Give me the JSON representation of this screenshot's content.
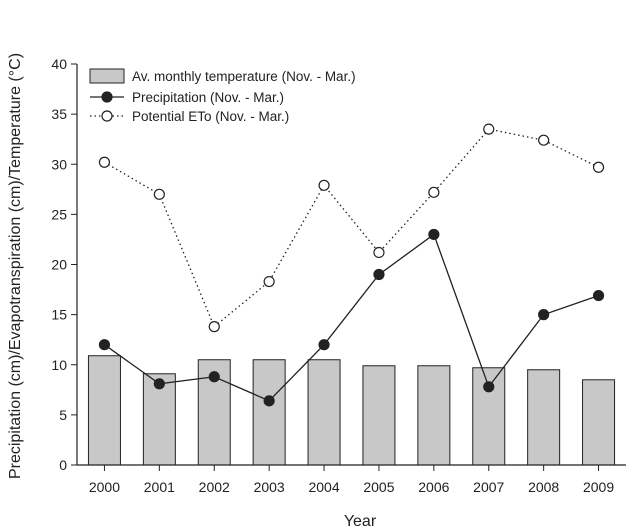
{
  "chart_data": {
    "type": "bar",
    "xlabel": "Year",
    "ylabel": "Precipitation (cm)/Evapotranspiration (cm)/Temperature (°C)",
    "ylim": [
      0,
      40
    ],
    "yticks": [
      0,
      5,
      10,
      15,
      20,
      25,
      30,
      35,
      40
    ],
    "categories": [
      "2000",
      "2001",
      "2002",
      "2003",
      "2004",
      "2005",
      "2006",
      "2007",
      "2008",
      "2009"
    ],
    "grid": false,
    "legend_position": "top-left",
    "series": [
      {
        "name": "Av. monthly temperature (Nov. - Mar.)",
        "type": "bar",
        "color": "#c8c8c8",
        "values": [
          10.9,
          9.1,
          10.5,
          10.5,
          10.5,
          9.9,
          9.9,
          9.7,
          9.5,
          8.5
        ]
      },
      {
        "name": "Precipitation (Nov. - Mar.)",
        "type": "line",
        "style": "solid",
        "marker": "filled-circle",
        "color": "#222222",
        "values": [
          12.0,
          8.1,
          8.8,
          6.4,
          12.0,
          19.0,
          23.0,
          7.8,
          15.0,
          16.9
        ]
      },
      {
        "name": "Potential ETo (Nov. - Mar.)",
        "type": "line",
        "style": "dotted",
        "marker": "open-circle",
        "color": "#222222",
        "values": [
          30.2,
          27.0,
          13.8,
          18.3,
          27.9,
          21.2,
          27.2,
          33.5,
          32.4,
          29.7
        ]
      }
    ]
  }
}
